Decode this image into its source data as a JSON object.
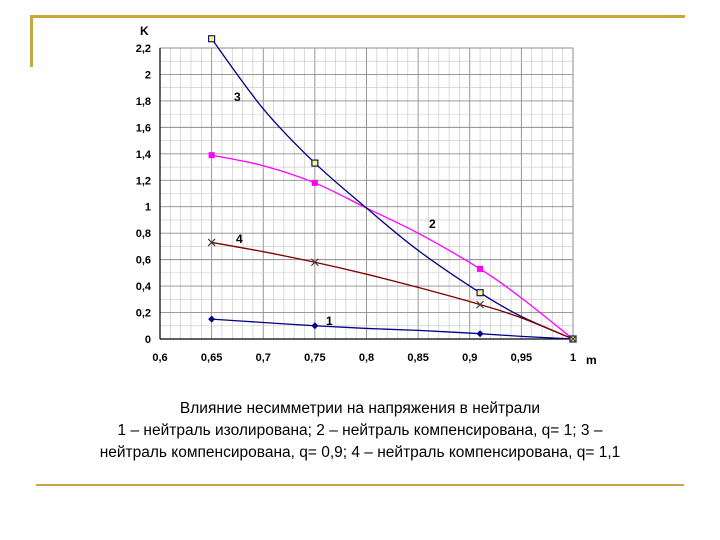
{
  "chart_data": {
    "type": "line",
    "xlabel": "m",
    "ylabel": "K",
    "xlim": [
      0.6,
      1.0
    ],
    "ylim": [
      0,
      2.2
    ],
    "x_ticks": [
      "0,6",
      "0,65",
      "0,7",
      "0,75",
      "0,8",
      "0,85",
      "0,9",
      "0,95",
      "1"
    ],
    "y_ticks": [
      "0",
      "0,2",
      "0,4",
      "0,6",
      "0,8",
      "1",
      "1,2",
      "1,4",
      "1,6",
      "1,8",
      "2",
      "2,2"
    ],
    "grid": true,
    "series": [
      {
        "name": "1",
        "color": "#00008b",
        "marker": "diamond",
        "points": [
          [
            0.65,
            0.15
          ],
          [
            0.75,
            0.1
          ],
          [
            0.91,
            0.04
          ],
          [
            1.0,
            0.0
          ]
        ],
        "curve": [
          [
            0.65,
            0.15
          ],
          [
            0.7,
            0.125
          ],
          [
            0.75,
            0.1
          ],
          [
            0.8,
            0.08
          ],
          [
            0.85,
            0.065
          ],
          [
            0.91,
            0.04
          ],
          [
            0.95,
            0.02
          ],
          [
            1.0,
            0.0
          ]
        ]
      },
      {
        "name": "2",
        "color": "#ff00ff",
        "marker": "square",
        "points": [
          [
            0.65,
            1.39
          ],
          [
            0.75,
            1.18
          ],
          [
            0.91,
            0.53
          ],
          [
            1.0,
            0.0
          ]
        ],
        "curve": [
          [
            0.65,
            1.39
          ],
          [
            0.7,
            1.31
          ],
          [
            0.75,
            1.18
          ],
          [
            0.8,
            0.99
          ],
          [
            0.85,
            0.8
          ],
          [
            0.91,
            0.53
          ],
          [
            0.95,
            0.31
          ],
          [
            1.0,
            0.0
          ]
        ]
      },
      {
        "name": "3",
        "color": "#000080",
        "marker": "square-open",
        "points": [
          [
            0.65,
            2.27
          ],
          [
            0.75,
            1.33
          ],
          [
            0.91,
            0.35
          ],
          [
            1.0,
            0.0
          ]
        ],
        "curve": [
          [
            0.65,
            2.27
          ],
          [
            0.7,
            1.74
          ],
          [
            0.75,
            1.33
          ],
          [
            0.8,
            0.99
          ],
          [
            0.85,
            0.67
          ],
          [
            0.91,
            0.35
          ],
          [
            0.95,
            0.17
          ],
          [
            1.0,
            0.0
          ]
        ]
      },
      {
        "name": "4",
        "color": "#800000",
        "marker": "x",
        "points": [
          [
            0.65,
            0.73
          ],
          [
            0.75,
            0.58
          ],
          [
            0.91,
            0.26
          ],
          [
            1.0,
            0.0
          ]
        ],
        "curve": [
          [
            0.65,
            0.73
          ],
          [
            0.7,
            0.66
          ],
          [
            0.75,
            0.58
          ],
          [
            0.8,
            0.49
          ],
          [
            0.85,
            0.39
          ],
          [
            0.91,
            0.26
          ],
          [
            0.95,
            0.16
          ],
          [
            1.0,
            0.0
          ]
        ]
      }
    ]
  },
  "caption": {
    "line1": "Влияние несимметрии на напряжения в нейтрали",
    "line2": "1 – нейтраль изолирована; 2 – нейтраль компенсирована, q= 1; 3 –",
    "line3": "нейтраль компенсирована, q= 0,9; 4 – нейтраль компенсирована, q= 1,1"
  }
}
